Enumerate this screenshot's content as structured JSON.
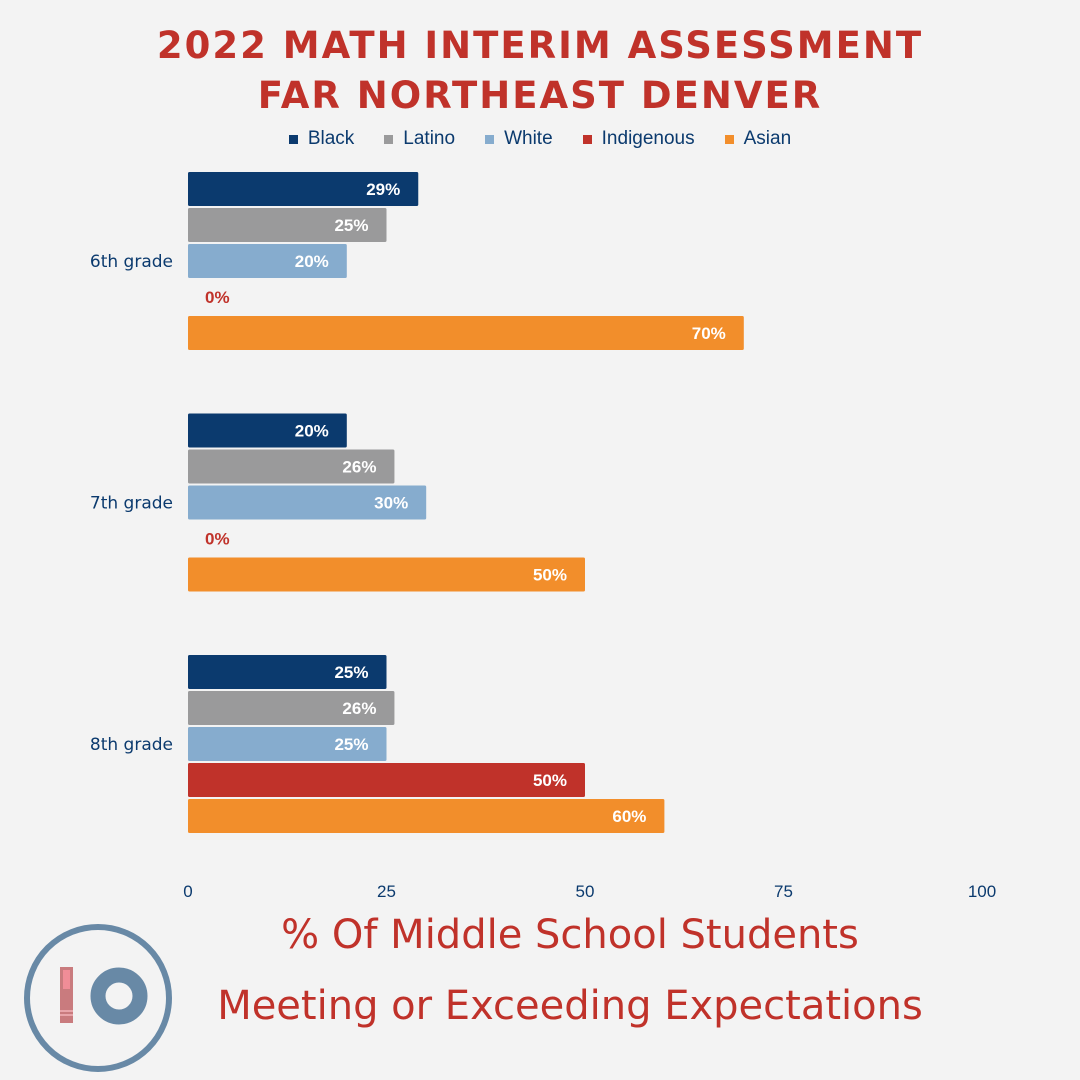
{
  "header": {
    "title_line1": "2022 MATH INTERIM ASSESSMENT",
    "title_line2": "FAR NORTHEAST DENVER"
  },
  "footer": {
    "line1": "% Of Middle School Students",
    "line2": "Meeting or Exceeding Expectations"
  },
  "logo": {
    "icon": "io-logo-icon",
    "text": "IO"
  },
  "colors": {
    "title": "#c0322a",
    "axis_text": "#0b3a6e",
    "background": "#f3f3f3",
    "logo_ring": "#6889a6",
    "logo_bar": "#c97b7e"
  },
  "chart_data": {
    "type": "bar",
    "orientation": "horizontal",
    "title": "2022 MATH INTERIM ASSESSMENT FAR NORTHEAST DENVER",
    "xlabel": "% Of Middle School Students Meeting or Exceeding Expectations",
    "ylabel": "",
    "categories": [
      "6th grade",
      "7th grade",
      "8th grade"
    ],
    "xlim": [
      0,
      100
    ],
    "xticks": [
      0,
      25,
      50,
      75,
      100
    ],
    "grid": false,
    "legend_position": "top-center",
    "value_label_format": "{v}%",
    "series": [
      {
        "name": "Black",
        "color": "#0b3a6e",
        "values": [
          29,
          20,
          25
        ]
      },
      {
        "name": "Latino",
        "color": "#9a9a9b",
        "values": [
          25,
          26,
          26
        ]
      },
      {
        "name": "White",
        "color": "#86acce",
        "values": [
          20,
          30,
          25
        ]
      },
      {
        "name": "Indigenous",
        "color": "#c0322a",
        "values": [
          0,
          0,
          50
        ]
      },
      {
        "name": "Asian",
        "color": "#f28e2b",
        "values": [
          70,
          50,
          60
        ]
      }
    ]
  }
}
